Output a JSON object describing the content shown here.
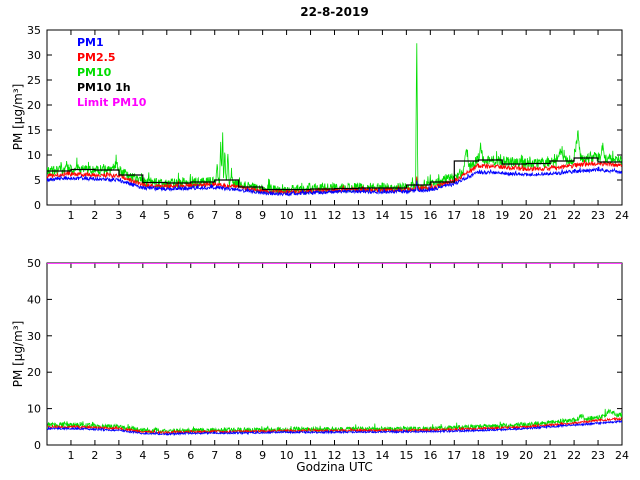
{
  "figure": {
    "title": "22-8-2019"
  },
  "chart_data": [
    {
      "type": "line",
      "title": "22-8-2019",
      "ylabel": "PM [µg/m³]",
      "xlabel": "",
      "xlim": [
        0,
        24
      ],
      "ylim": [
        0,
        35
      ],
      "xticks": [
        1,
        2,
        3,
        4,
        5,
        6,
        7,
        8,
        9,
        10,
        11,
        12,
        13,
        14,
        15,
        16,
        17,
        18,
        19,
        20,
        21,
        22,
        23,
        24
      ],
      "yticks": [
        0,
        5,
        10,
        15,
        20,
        25,
        30,
        35
      ],
      "grid": false,
      "seed": 7,
      "legend": {
        "position": "top-left",
        "entries": [
          {
            "label": "PM1",
            "color": "#0000ff"
          },
          {
            "label": "PM2.5",
            "color": "#ff0000"
          },
          {
            "label": "PM10",
            "color": "#00dd00"
          },
          {
            "label": "PM10 1h",
            "color": "#000000"
          },
          {
            "label": "Limit PM10",
            "color": "#ff00ff"
          }
        ]
      },
      "limit": {
        "name": "Limit PM10",
        "color": "#ff00ff",
        "value": 50
      },
      "series": [
        {
          "name": "PM10",
          "color": "#00dd00",
          "noise": 1.0,
          "width": 0.8,
          "hourly": [
            6.8,
            7.2,
            7.0,
            6.8,
            4.6,
            4.3,
            4.5,
            4.8,
            4.0,
            3.2,
            3.0,
            3.2,
            3.4,
            3.5,
            3.4,
            3.5,
            3.9,
            5.5,
            9.0,
            8.8,
            8.3,
            8.4,
            9.2,
            9.6,
            9.0
          ],
          "spikes": [
            {
              "t": 2.9,
              "h": 2.0,
              "w": 0.1
            },
            {
              "t": 7.1,
              "h": 4.0,
              "w": 0.06
            },
            {
              "t": 7.25,
              "h": 8.5,
              "w": 0.05
            },
            {
              "t": 7.33,
              "h": 10.5,
              "w": 0.04
            },
            {
              "t": 7.42,
              "h": 7.0,
              "w": 0.05
            },
            {
              "t": 7.55,
              "h": 4.5,
              "w": 0.06
            },
            {
              "t": 7.7,
              "h": 3.0,
              "w": 0.05
            },
            {
              "t": 15.43,
              "h": 31.0,
              "w": 0.045
            },
            {
              "t": 17.5,
              "h": 4.5,
              "w": 0.12
            },
            {
              "t": 18.1,
              "h": 2.5,
              "w": 0.1
            },
            {
              "t": 21.4,
              "h": 2.5,
              "w": 0.15
            },
            {
              "t": 22.15,
              "h": 5.5,
              "w": 0.12
            },
            {
              "t": 23.2,
              "h": 2.5,
              "w": 0.1
            }
          ]
        },
        {
          "name": "PM2.5",
          "color": "#ff0000",
          "noise": 0.45,
          "width": 0.8,
          "hourly": [
            5.8,
            6.2,
            6.0,
            5.8,
            4.0,
            3.7,
            3.9,
            4.1,
            3.5,
            2.8,
            2.6,
            2.8,
            3.0,
            3.1,
            3.0,
            3.1,
            3.4,
            4.8,
            7.8,
            7.6,
            7.2,
            7.3,
            7.9,
            8.3,
            7.8
          ],
          "spikes": [
            {
              "t": 15.43,
              "h": 2.5,
              "w": 0.04
            }
          ]
        },
        {
          "name": "PM1",
          "color": "#0000ff",
          "noise": 0.35,
          "width": 0.8,
          "hourly": [
            5.0,
            5.4,
            5.2,
            5.0,
            3.4,
            3.2,
            3.4,
            3.5,
            3.0,
            2.4,
            2.2,
            2.4,
            2.6,
            2.7,
            2.6,
            2.7,
            3.0,
            4.2,
            6.6,
            6.4,
            6.1,
            6.2,
            6.7,
            7.0,
            6.6
          ],
          "spikes": [
            {
              "t": 15.43,
              "h": 2.0,
              "w": 0.04
            }
          ]
        },
        {
          "name": "PM10 1h",
          "color": "#000000",
          "step": true,
          "width": 1.2,
          "hourly": [
            6.8,
            7.1,
            7.0,
            6.0,
            4.5,
            4.4,
            4.6,
            5.0,
            3.6,
            3.1,
            3.1,
            3.2,
            3.3,
            3.4,
            3.4,
            4.0,
            4.6,
            8.8,
            9.0,
            8.2,
            8.3,
            8.8,
            9.4,
            8.6
          ]
        }
      ]
    },
    {
      "type": "line",
      "title": "",
      "ylabel": "PM [µg/m³]",
      "xlabel": "Godzina UTC",
      "xlim": [
        0,
        24
      ],
      "ylim": [
        0,
        50
      ],
      "xticks": [
        1,
        2,
        3,
        4,
        5,
        6,
        7,
        8,
        9,
        10,
        11,
        12,
        13,
        14,
        15,
        16,
        17,
        18,
        19,
        20,
        21,
        22,
        23,
        24
      ],
      "yticks": [
        0,
        10,
        20,
        30,
        40,
        50
      ],
      "grid": false,
      "seed": 11,
      "limit": {
        "name": "Limit PM10",
        "color": "#ff00ff",
        "value": 50
      },
      "series": [
        {
          "name": "PM10",
          "color": "#00dd00",
          "noise": 0.65,
          "width": 0.8,
          "hourly": [
            5.5,
            5.5,
            5.3,
            5.0,
            4.0,
            3.8,
            4.0,
            4.1,
            4.1,
            4.2,
            4.3,
            4.3,
            4.3,
            4.4,
            4.4,
            4.4,
            4.5,
            4.8,
            5.0,
            5.2,
            5.6,
            6.2,
            6.8,
            7.6,
            8.2
          ],
          "spikes": [
            {
              "t": 22.3,
              "h": 1.0,
              "w": 0.2
            },
            {
              "t": 23.5,
              "h": 1.5,
              "w": 0.3
            }
          ]
        },
        {
          "name": "PM2.5",
          "color": "#ff0000",
          "noise": 0.3,
          "width": 0.8,
          "hourly": [
            5.0,
            5.0,
            4.8,
            4.5,
            3.6,
            3.4,
            3.6,
            3.7,
            3.7,
            3.8,
            3.9,
            3.9,
            3.9,
            4.0,
            4.0,
            4.0,
            4.1,
            4.3,
            4.5,
            4.7,
            5.0,
            5.5,
            6.0,
            6.8,
            7.2
          ],
          "spikes": []
        },
        {
          "name": "PM1",
          "color": "#0000ff",
          "noise": 0.25,
          "width": 0.8,
          "hourly": [
            4.5,
            4.5,
            4.3,
            4.0,
            3.2,
            3.0,
            3.2,
            3.3,
            3.3,
            3.4,
            3.5,
            3.5,
            3.5,
            3.6,
            3.6,
            3.6,
            3.7,
            3.8,
            4.0,
            4.2,
            4.5,
            5.0,
            5.5,
            6.0,
            6.5
          ],
          "spikes": []
        }
      ]
    }
  ]
}
